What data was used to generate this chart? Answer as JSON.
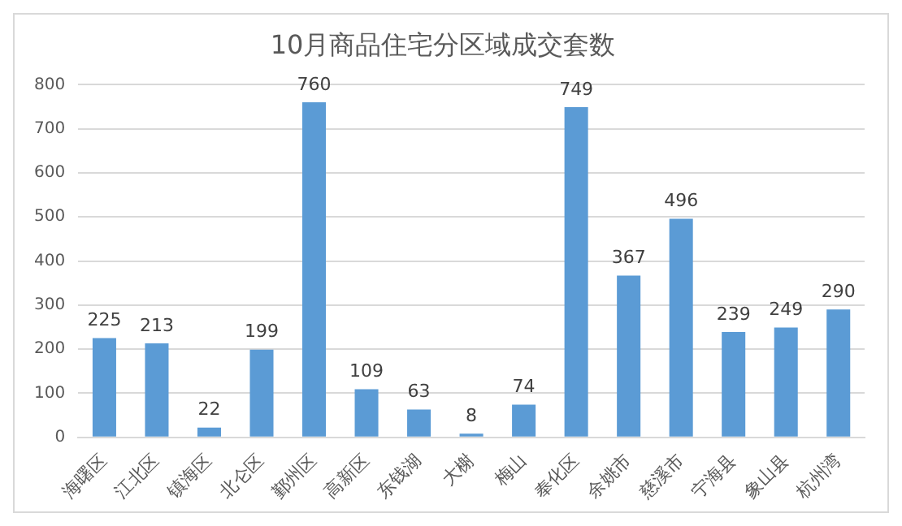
{
  "chart_data": {
    "type": "bar",
    "title": "10月商品住宅分区域成交套数",
    "categories": [
      "海曙区",
      "江北区",
      "镇海区",
      "北仑区",
      "鄞州区",
      "高新区",
      "东钱湖",
      "大榭",
      "梅山",
      "奉化区",
      "余姚市",
      "慈溪市",
      "宁海县",
      "象山县",
      "杭州湾"
    ],
    "values": [
      225,
      213,
      22,
      199,
      760,
      109,
      63,
      8,
      74,
      749,
      367,
      496,
      239,
      249,
      290
    ],
    "color": "#5b9bd5",
    "ylim": [
      0,
      800
    ],
    "yticks": [
      0,
      100,
      200,
      300,
      400,
      500,
      600,
      700,
      800
    ],
    "grid": "y",
    "data_labels": true
  }
}
